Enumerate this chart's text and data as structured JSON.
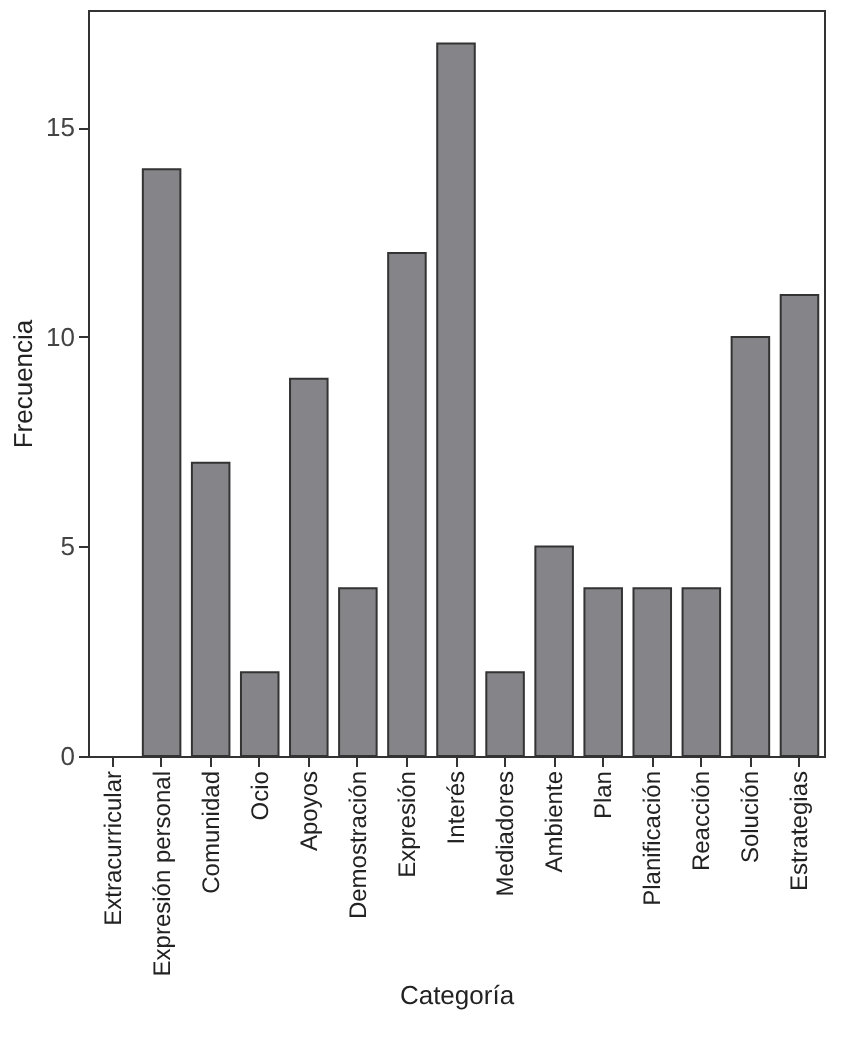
{
  "chart_data": {
    "type": "bar",
    "xlabel": "Categoría",
    "ylabel": "Frecuencia",
    "categories": [
      "Extracurricular",
      "Expresión personal",
      "Comunidad",
      "Ocio",
      "Apoyos",
      "Demostración",
      "Expresión",
      "Interés",
      "Mediadores",
      "Ambiente",
      "Plan",
      "Planificación",
      "Reacción",
      "Solución",
      "Estrategias"
    ],
    "values": [
      0,
      14,
      7,
      2,
      9,
      4,
      12,
      17,
      2,
      5,
      4,
      4,
      4,
      10,
      11
    ],
    "color": "#858589",
    "ylim": [
      0,
      17.8
    ],
    "yticks": [
      0,
      5,
      10,
      15
    ],
    "grid": false
  }
}
